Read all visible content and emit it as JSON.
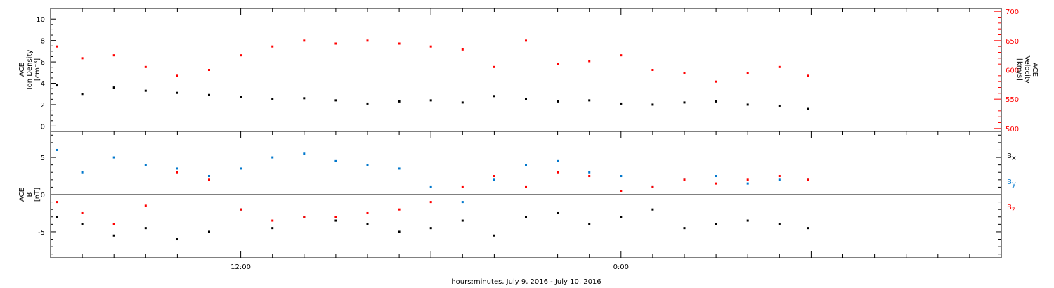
{
  "chart_data": [
    {
      "type": "scatter",
      "xlabel": "hours:minutes, July  9, 2016 - July 10, 2016",
      "x_range_hours": [
        6,
        36
      ],
      "x_tick_labels": [
        {
          "hour": 12,
          "label": "12:00"
        },
        {
          "hour": 24,
          "label": "0:00"
        }
      ],
      "left_axis": {
        "label_lines": [
          "ACE",
          "Ion Density",
          "[cm⁻³]"
        ],
        "ylim": [
          -0.5,
          11
        ],
        "ticks": [
          0,
          2,
          4,
          6,
          8,
          10
        ],
        "color": "#000000"
      },
      "right_axis": {
        "label_lines": [
          "ACE",
          "Velocity",
          "[km/s]"
        ],
        "ylim": [
          495,
          705
        ],
        "ticks": [
          500,
          550,
          600,
          650,
          700
        ],
        "color": "#ff0000"
      },
      "series": [
        {
          "axis": "left",
          "color": "#000000",
          "x": [
            6.2,
            7,
            8,
            9,
            10,
            11,
            12,
            13,
            14,
            15,
            16,
            17,
            18,
            19,
            20,
            21,
            22,
            23,
            24,
            25,
            26,
            27,
            28,
            29,
            29.9
          ],
          "y": [
            3.8,
            3.0,
            3.6,
            3.3,
            3.1,
            2.9,
            2.7,
            2.5,
            2.6,
            2.4,
            2.1,
            2.3,
            2.4,
            2.2,
            2.8,
            2.5,
            2.3,
            2.4,
            2.1,
            2.0,
            2.2,
            2.3,
            2.0,
            1.9,
            1.6
          ]
        },
        {
          "axis": "right",
          "color": "#ff0000",
          "x": [
            6.2,
            7,
            8,
            9,
            10,
            11,
            12,
            13,
            14,
            15,
            16,
            17,
            18,
            19,
            20,
            21,
            22,
            23,
            24,
            25,
            26,
            27,
            28,
            29,
            29.9
          ],
          "y": [
            640,
            620,
            625,
            605,
            590,
            600,
            625,
            640,
            650,
            645,
            650,
            645,
            640,
            635,
            605,
            650,
            610,
            615,
            625,
            600,
            595,
            580,
            595,
            605,
            590
          ]
        }
      ]
    },
    {
      "type": "scatter",
      "x_range_hours": [
        6,
        36
      ],
      "axis": {
        "label_lines": [
          "ACE",
          "B",
          "[nT]"
        ],
        "ylim": [
          -8.5,
          8.5
        ],
        "ticks": [
          -5,
          0,
          5
        ]
      },
      "zero_line": 0,
      "series": [
        {
          "name": "B",
          "sub": "x",
          "color": "#000000",
          "x": [
            6.2,
            7,
            8,
            9,
            10,
            11,
            12,
            13,
            14,
            15,
            16,
            17,
            18,
            19,
            20,
            21,
            22,
            23,
            24,
            25,
            26,
            27,
            28,
            29,
            29.9
          ],
          "y": [
            -3.0,
            -4.0,
            -5.5,
            -4.5,
            -6.0,
            -5.0,
            -2.0,
            -4.5,
            -3.0,
            -3.5,
            -4.0,
            -5.0,
            -4.5,
            -3.5,
            -5.5,
            -3.0,
            -2.5,
            -4.0,
            -3.0,
            -2.0,
            -4.5,
            -4.0,
            -3.5,
            -4.0,
            -4.5
          ]
        },
        {
          "name": "B",
          "sub": "y",
          "color": "#0077cc",
          "x": [
            6.2,
            7,
            8,
            9,
            10,
            11,
            12,
            13,
            14,
            15,
            16,
            17,
            18,
            19,
            20,
            21,
            22,
            23,
            24,
            25,
            26,
            27,
            28,
            29,
            29.9
          ],
          "y": [
            6.0,
            3.0,
            5.0,
            4.0,
            3.5,
            2.5,
            3.5,
            5.0,
            5.5,
            4.5,
            4.0,
            3.5,
            1.0,
            -1.0,
            2.0,
            4.0,
            4.5,
            3.0,
            2.5,
            1.0,
            2.0,
            2.5,
            1.5,
            2.0,
            2.0
          ]
        },
        {
          "name": "B",
          "sub": "z",
          "color": "#ff0000",
          "x": [
            6.2,
            7,
            8,
            9,
            10,
            11,
            12,
            13,
            14,
            15,
            16,
            17,
            18,
            19,
            20,
            21,
            22,
            23,
            24,
            25,
            26,
            27,
            28,
            29,
            29.9
          ],
          "y": [
            -1.0,
            -2.5,
            -4.0,
            -1.5,
            3.0,
            2.0,
            -2.0,
            -3.5,
            -3.0,
            -3.0,
            -2.5,
            -2.0,
            -1.0,
            1.0,
            2.5,
            1.0,
            3.0,
            2.5,
            0.5,
            1.0,
            2.0,
            1.5,
            2.0,
            2.5,
            2.0
          ]
        }
      ]
    }
  ]
}
